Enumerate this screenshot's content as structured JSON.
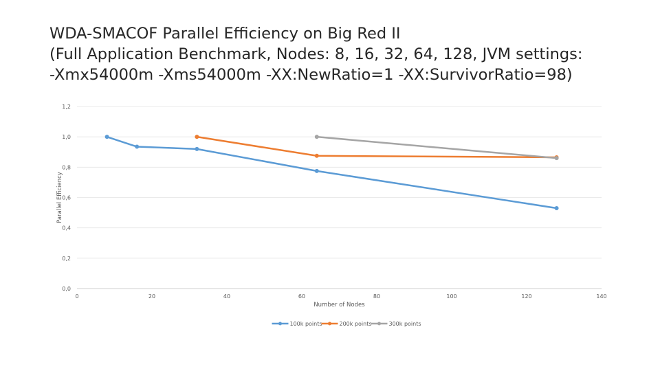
{
  "chart_data": {
    "type": "line",
    "title_lines": [
      "WDA-SMACOF Parallel Efficiency on Big Red II",
      "(Full Application Benchmark, Nodes: 8, 16, 32, 64, 128, JVM settings:",
      "-Xmx54000m -Xms54000m -XX:NewRatio=1 -XX:SurvivorRatio=98)"
    ],
    "xlabel": "Number of Nodes",
    "ylabel": "Parallel Efficiency",
    "xlim": [
      0,
      140
    ],
    "ylim": [
      0,
      1.2
    ],
    "x_ticks": [
      "0",
      "20",
      "40",
      "60",
      "80",
      "100",
      "120",
      "140"
    ],
    "y_ticks": [
      "0,0",
      "0,2",
      "0,4",
      "0,6",
      "0,8",
      "1,0",
      "1,2"
    ],
    "grid": true,
    "legend_position": "bottom",
    "series": [
      {
        "name": "100k points",
        "color": "#5b9bd5",
        "x": [
          8,
          16,
          32,
          64,
          128
        ],
        "y": [
          1.0,
          0.935,
          0.92,
          0.775,
          0.53
        ]
      },
      {
        "name": "200k points",
        "color": "#ed7d31",
        "x": [
          32,
          64,
          128
        ],
        "y": [
          1.0,
          0.875,
          0.865
        ]
      },
      {
        "name": "300k points",
        "color": "#a5a5a5",
        "x": [
          64,
          128
        ],
        "y": [
          1.0,
          0.86
        ]
      }
    ]
  }
}
